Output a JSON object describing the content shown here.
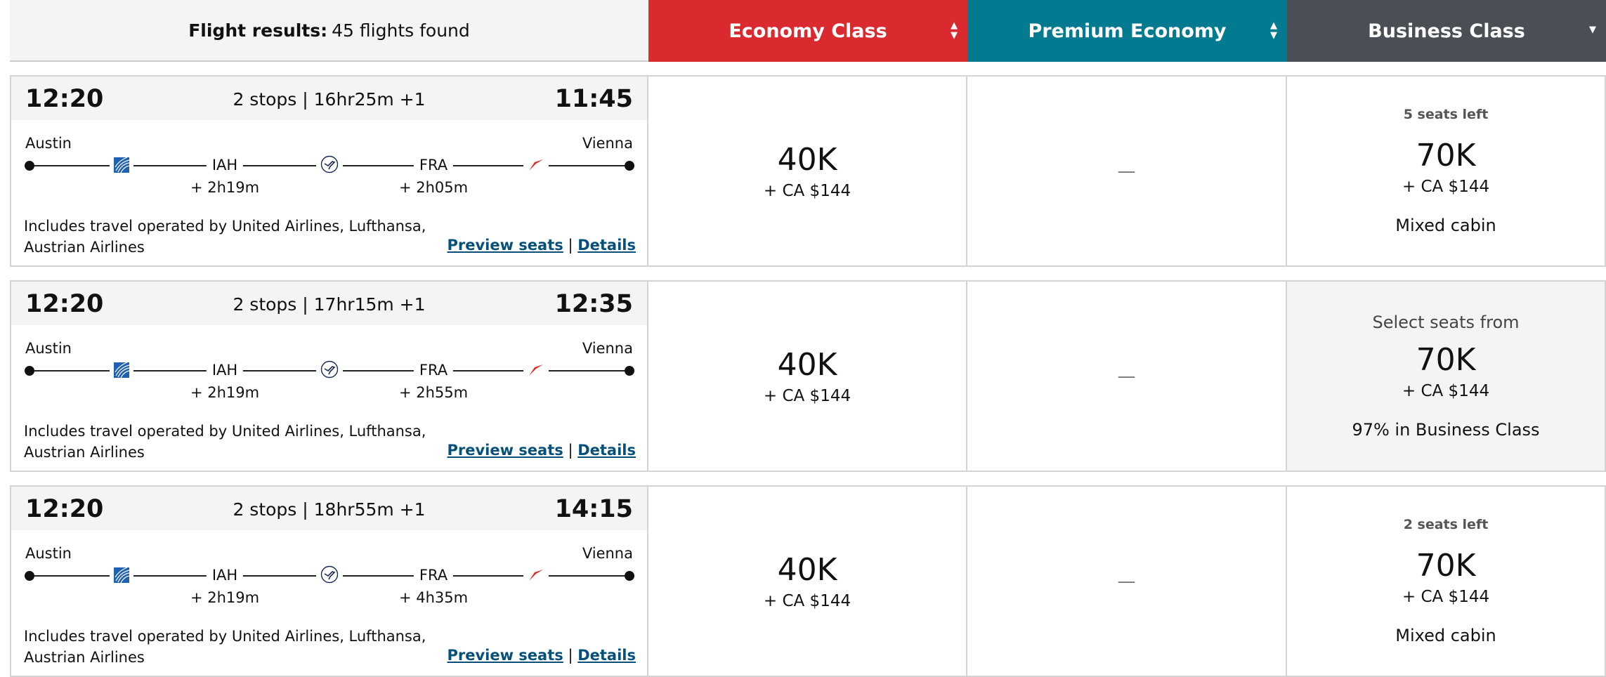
{
  "header": {
    "results_label": "Flight results:",
    "results_count": "45 flights found",
    "cabins": [
      {
        "label": "Economy Class",
        "color": "#da2a30",
        "sort": "both"
      },
      {
        "label": "Premium Economy",
        "color": "#047a91",
        "sort": "both"
      },
      {
        "label": "Business Class",
        "color": "#4a4e55",
        "sort": "down"
      }
    ]
  },
  "rows": [
    {
      "dep": "12:20",
      "summary": "2 stops | 16hr25m +1",
      "arr": "11:45",
      "from": "Austin",
      "to": "Vienna",
      "stop1": "IAH",
      "lay1": "+ 2h19m",
      "stop2": "FRA",
      "lay2": "+ 2h05m",
      "ops": "Includes travel operated by United Airlines, Lufthansa, Austrian Airlines",
      "preview": "Preview seats",
      "sep": "|",
      "details": "Details",
      "economy": {
        "price": "40K",
        "tax": "+ CA $144"
      },
      "premium": "—",
      "business": {
        "top": "5 seats left",
        "price": "70K",
        "tax": "+ CA $144",
        "note": "Mixed cabin",
        "style": "seats"
      }
    },
    {
      "dep": "12:20",
      "summary": "2 stops | 17hr15m +1",
      "arr": "12:35",
      "from": "Austin",
      "to": "Vienna",
      "stop1": "IAH",
      "lay1": "+ 2h19m",
      "stop2": "FRA",
      "lay2": "+ 2h55m",
      "ops": "Includes travel operated by United Airlines, Lufthansa, Austrian Airlines",
      "preview": "Preview seats",
      "sep": "|",
      "details": "Details",
      "economy": {
        "price": "40K",
        "tax": "+ CA $144"
      },
      "premium": "—",
      "business": {
        "top": "Select seats from",
        "price": "70K",
        "tax": "+ CA $144",
        "note": "97% in Business Class",
        "style": "select"
      }
    },
    {
      "dep": "12:20",
      "summary": "2 stops | 18hr55m +1",
      "arr": "14:15",
      "from": "Austin",
      "to": "Vienna",
      "stop1": "IAH",
      "lay1": "+ 2h19m",
      "stop2": "FRA",
      "lay2": "+ 4h35m",
      "ops": "Includes travel operated by United Airlines, Lufthansa, Austrian Airlines",
      "preview": "Preview seats",
      "sep": "|",
      "details": "Details",
      "economy": {
        "price": "40K",
        "tax": "+ CA $144"
      },
      "premium": "—",
      "business": {
        "top": "2 seats left",
        "price": "70K",
        "tax": "+ CA $144",
        "note": "Mixed cabin",
        "style": "seats"
      }
    }
  ],
  "icons": {
    "airline1": "united-globe-icon",
    "airline2": "lufthansa-crane-icon",
    "airline3": "austrian-arrow-icon"
  }
}
